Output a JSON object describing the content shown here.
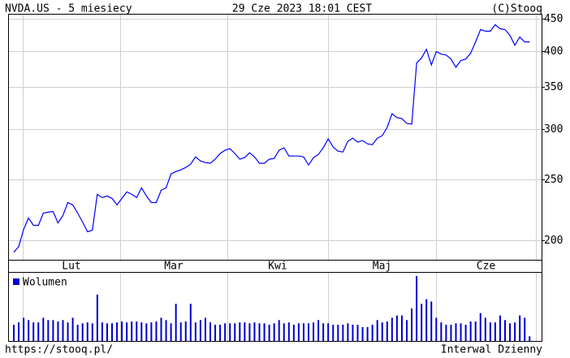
{
  "header": {
    "left": "NVDA.US - 5 miesiecy",
    "center": "29 Cze 2023 18:01 CEST",
    "right": "(C)Stooq"
  },
  "footer": {
    "left": "https://stooq.pl/",
    "right": "Interwal Dzienny"
  },
  "chart_data": [
    {
      "type": "line",
      "log_scale": true,
      "grid": true,
      "x_labels": [
        "Lut",
        "Mar",
        "Kwi",
        "Maj",
        "Cze"
      ],
      "ylim": [
        186,
        458
      ],
      "yticks": [
        200,
        250,
        300,
        350,
        400,
        450
      ],
      "series": [
        {
          "color": "#0000ff",
          "values": [
            191.2,
            195.3,
            207.9,
            216.8,
            211.0,
            211.0,
            220.7,
            221.4,
            222.0,
            212.9,
            218.7,
            229.4,
            227.4,
            220.7,
            213.6,
            206.1,
            207.3,
            236.4,
            233.6,
            235.0,
            232.9,
            227.4,
            232.9,
            238.5,
            236.4,
            233.6,
            242.1,
            235.0,
            229.4,
            229.4,
            239.9,
            242.1,
            254.7,
            257.0,
            258.5,
            260.9,
            264.0,
            271.1,
            267.1,
            265.6,
            264.9,
            268.9,
            274.5,
            277.8,
            279.4,
            274.5,
            268.9,
            270.4,
            275.3,
            271.1,
            264.9,
            264.9,
            268.9,
            269.6,
            277.8,
            280.3,
            272.0,
            272.0,
            272.0,
            271.1,
            263.2,
            270.4,
            273.6,
            280.3,
            289.6,
            281.1,
            276.9,
            276.1,
            287.1,
            290.4,
            286.2,
            287.9,
            284.4,
            283.6,
            290.4,
            293.1,
            302.0,
            317.7,
            313.0,
            312.0,
            306.5,
            305.6,
            382.3,
            389.3,
            402.2,
            379.9,
            398.7,
            395.1,
            393.9,
            388.1,
            376.5,
            385.9,
            388.1,
            396.2,
            413.2,
            432.3,
            429.7,
            429.7,
            440.1,
            433.6,
            432.3,
            423.2,
            408.2,
            420.7,
            413.2,
            413.2
          ]
        }
      ]
    },
    {
      "type": "bar",
      "series": [
        {
          "name": "Wolumen",
          "color": "#0000cc",
          "values": [
            35,
            40,
            50,
            45,
            40,
            40,
            50,
            45,
            45,
            42,
            45,
            40,
            50,
            35,
            38,
            40,
            38,
            100,
            40,
            38,
            38,
            40,
            42,
            40,
            42,
            42,
            40,
            38,
            40,
            42,
            50,
            45,
            38,
            80,
            40,
            42,
            80,
            40,
            45,
            50,
            40,
            35,
            35,
            38,
            38,
            38,
            40,
            40,
            38,
            40,
            38,
            38,
            35,
            38,
            45,
            38,
            40,
            35,
            38,
            38,
            38,
            40,
            45,
            38,
            38,
            35,
            35,
            35,
            38,
            35,
            35,
            30,
            30,
            35,
            45,
            40,
            42,
            50,
            55,
            55,
            45,
            70,
            140,
            80,
            90,
            85,
            50,
            40,
            35,
            35,
            38,
            38,
            35,
            42,
            42,
            60,
            50,
            40,
            40,
            55,
            45,
            38,
            40,
            55,
            50,
            10
          ]
        }
      ]
    }
  ]
}
